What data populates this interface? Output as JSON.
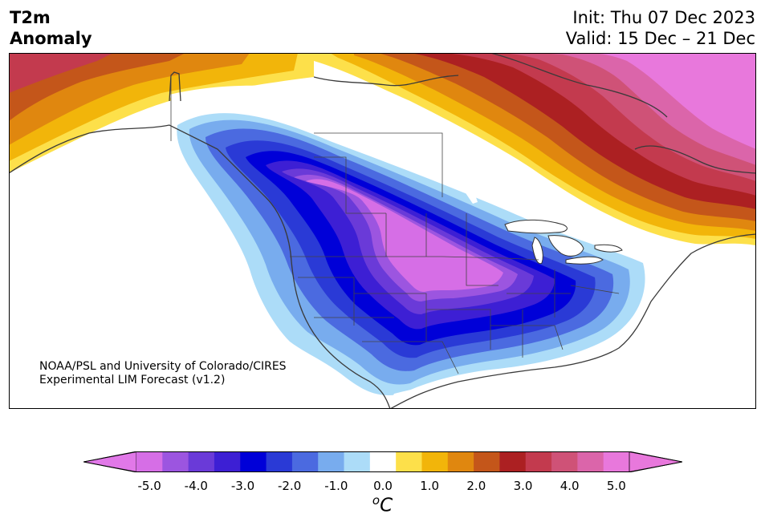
{
  "title": {
    "left_line1": "T2m",
    "left_line2": "Anomaly",
    "init": "Init: Thu 07 Dec 2023",
    "valid": "Valid: 15 Dec – 21 Dec"
  },
  "credit": {
    "line1": "NOAA/PSL and University of Colorado/CIRES",
    "line2": "Experimental LIM Forecast (v1.2)"
  },
  "colorbar": {
    "units": "oC",
    "tick_labels": [
      "-5.0",
      "-4.0",
      "-3.0",
      "-2.0",
      "-1.0",
      "0.0",
      "1.0",
      "2.0",
      "3.0",
      "4.0",
      "5.0"
    ],
    "bins": [
      -5.0,
      -4.5,
      -4.0,
      -3.5,
      -3.0,
      -2.5,
      -2.0,
      -1.5,
      -1.0,
      -0.5,
      0.5,
      1.0,
      1.5,
      2.0,
      2.5,
      3.0,
      3.5,
      4.0,
      4.5,
      5.0
    ],
    "colors": [
      "#d66ee6",
      "#9c55e0",
      "#6a3ad8",
      "#3d1fd4",
      "#0000d8",
      "#2a3ad6",
      "#4b6ae0",
      "#78acee",
      "#acdcf8",
      "#ffffff",
      "#fde04a",
      "#f2b50a",
      "#e0870f",
      "#c4561a",
      "#ac2022",
      "#c33a4e",
      "#cf5277",
      "#db65aa",
      "#e878dc"
    ],
    "under_color": "#e178e8",
    "over_color": "#e878dc"
  },
  "map": {
    "region": "North America",
    "features": [
      "coastlines",
      "country borders",
      "US state borders",
      "Canadian province borders"
    ],
    "anomaly_summary": {
      "cold_core_center": "Northern Plains / Upper Midwest",
      "cold_core_min_c": -5.0,
      "warm_core_center": "Quebec / Labrador / Greenland",
      "warm_core_max_c": 5.0,
      "secondary_warm": "Alaska"
    }
  }
}
